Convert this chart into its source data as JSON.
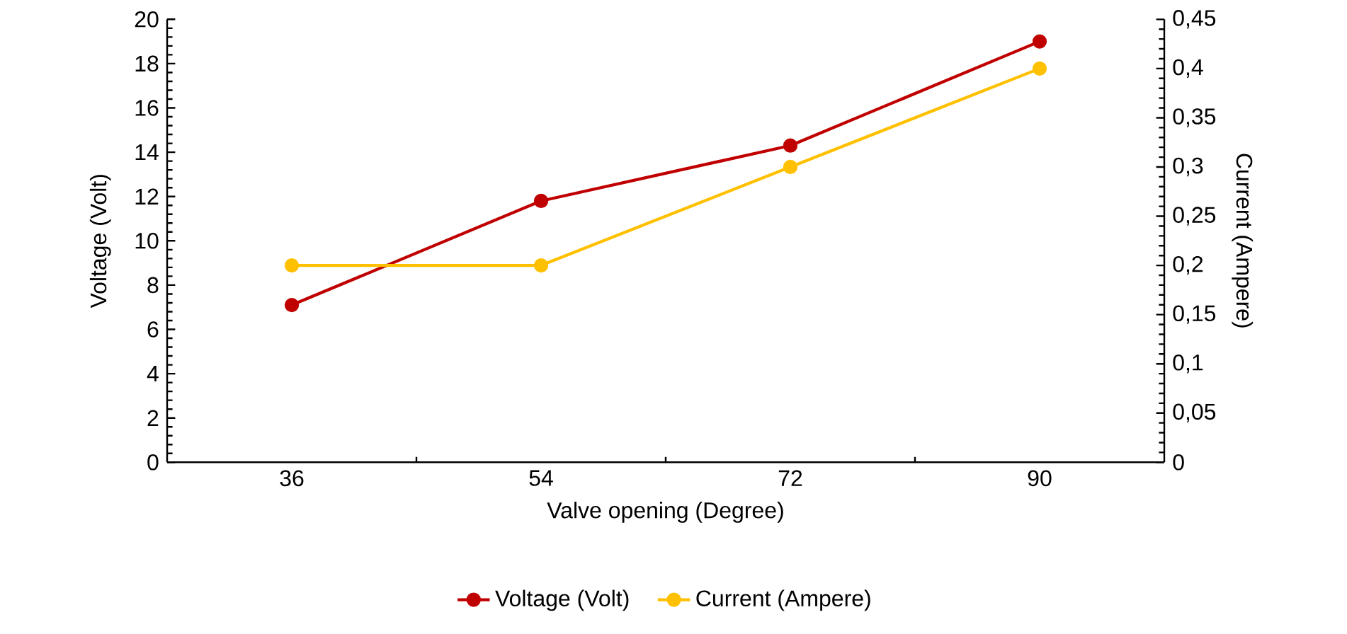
{
  "chart_data": {
    "type": "line",
    "categories": [
      "36",
      "54",
      "72",
      "90"
    ],
    "xlabel": "Valve opening (Degree)",
    "ylabel": "Voltage (Volt)",
    "y2label": "Current (Ampere)",
    "series": [
      {
        "name": "Voltage (Volt)",
        "color": "#c00000",
        "values": [
          7.1,
          11.8,
          14.3,
          19.0
        ]
      },
      {
        "name": "Current (Ampere)",
        "color": "#ffc000",
        "values": [
          0.2,
          0.2,
          0.3,
          0.4
        ],
        "axis": "y2"
      }
    ],
    "ylim": [
      0,
      20
    ],
    "yticks": [
      0,
      2,
      4,
      6,
      8,
      10,
      12,
      14,
      16,
      18,
      20
    ],
    "y2lim": [
      0,
      0.45
    ],
    "y2ticks": [
      0,
      {
        "value": 0.05,
        "label": "0,05"
      },
      {
        "value": 0.1,
        "label": "0,1"
      },
      {
        "value": 0.15,
        "label": "0,15"
      },
      {
        "value": 0.2,
        "label": "0,2"
      },
      {
        "value": 0.25,
        "label": "0,25"
      },
      {
        "value": 0.3,
        "label": "0,3"
      },
      {
        "value": 0.35,
        "label": "0,35"
      },
      {
        "value": 0.4,
        "label": "0,4"
      },
      {
        "value": 0.45,
        "label": "0,45"
      }
    ],
    "grid": false,
    "legend": "bottom",
    "marker": "circle",
    "line_style": "solid"
  }
}
